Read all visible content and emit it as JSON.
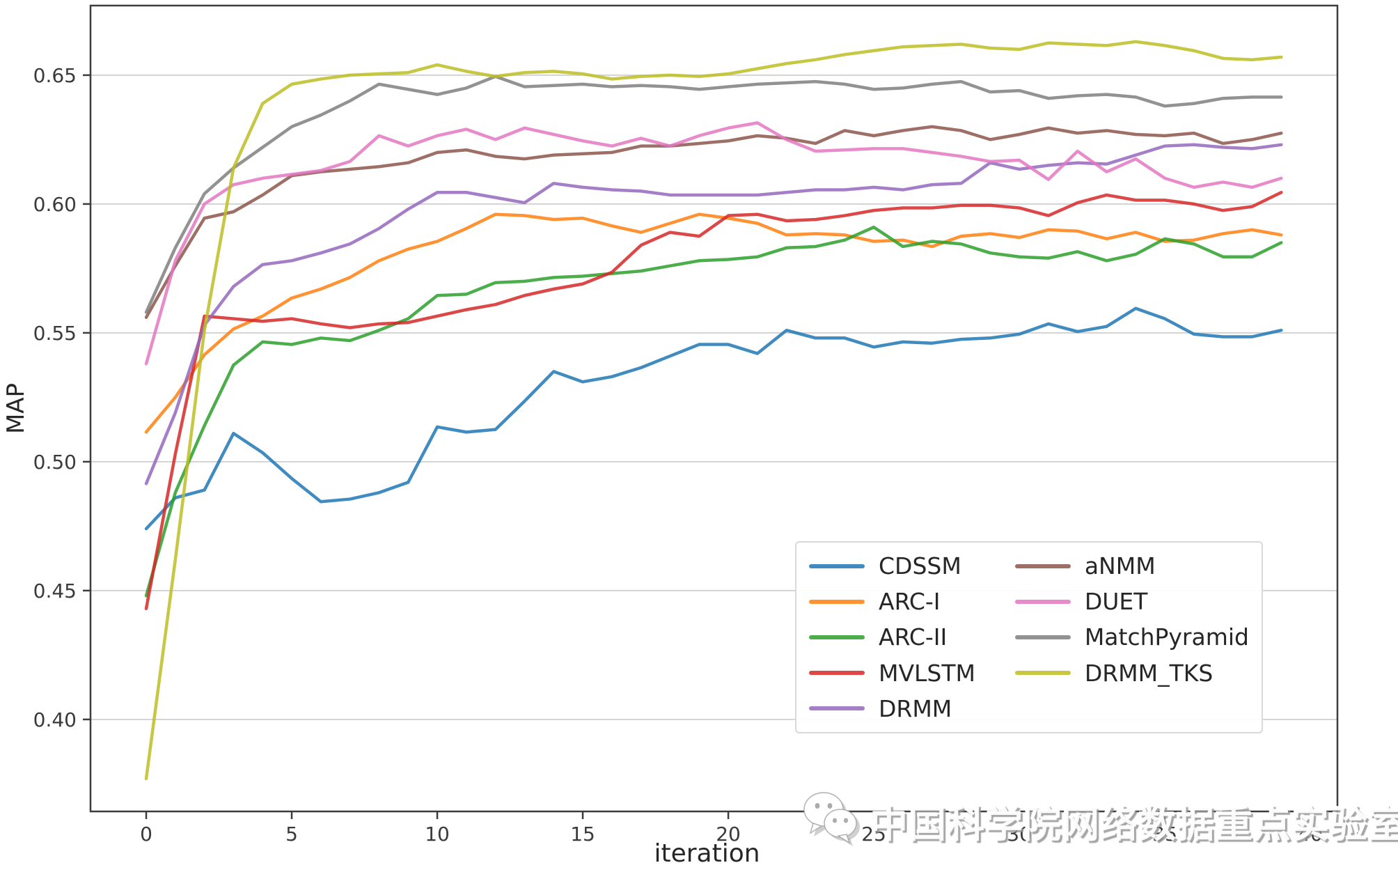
{
  "axes": {
    "xlabel": "iteration",
    "ylabel": "MAP"
  },
  "watermark": {
    "icon": "wechat-icon",
    "text": "中国科学院网络数据重点实验室"
  },
  "colors": {
    "grid": "#cccccc",
    "spine": "#3c3c3c",
    "tick_label": "#3a3a3a",
    "axis_label": "#262626"
  },
  "chart_data": {
    "type": "line",
    "title": "",
    "xlabel": "iteration",
    "ylabel": "MAP",
    "grid": "horizontal",
    "legend_position": "lower right",
    "xlim": [
      -1.914,
      40.93
    ],
    "ylim": [
      0.3643,
      0.677
    ],
    "x_ticks": [
      {
        "value": 0,
        "label": "0"
      },
      {
        "value": 5,
        "label": "5"
      },
      {
        "value": 10,
        "label": "10"
      },
      {
        "value": 15,
        "label": "15"
      },
      {
        "value": 20,
        "label": "20"
      },
      {
        "value": 25,
        "label": "25"
      },
      {
        "value": 30,
        "label": "30"
      },
      {
        "value": 35,
        "label": "35"
      },
      {
        "value": 40,
        "label": "40"
      }
    ],
    "y_ticks": [
      {
        "value": 0.4,
        "label": "0.40"
      },
      {
        "value": 0.45,
        "label": "0.45"
      },
      {
        "value": 0.5,
        "label": "0.50"
      },
      {
        "value": 0.55,
        "label": "0.55"
      },
      {
        "value": 0.6,
        "label": "0.60"
      },
      {
        "value": 0.65,
        "label": "0.65"
      }
    ],
    "x": [
      0,
      1,
      2,
      3,
      4,
      5,
      6,
      7,
      8,
      9,
      10,
      11,
      12,
      13,
      14,
      15,
      16,
      17,
      18,
      19,
      20,
      21,
      22,
      23,
      24,
      25,
      26,
      27,
      28,
      29,
      30,
      31,
      32,
      33,
      34,
      35,
      36,
      37,
      38,
      39
    ],
    "series": [
      {
        "name": "CDSSM",
        "color": "#1f77b4",
        "values": [
          0.474,
          0.486,
          0.489,
          0.511,
          0.5035,
          0.4935,
          0.4845,
          0.4855,
          0.488,
          0.492,
          0.5135,
          0.5115,
          0.5125,
          0.5235,
          0.535,
          0.531,
          0.533,
          0.5365,
          0.541,
          0.5455,
          0.5455,
          0.542,
          0.551,
          0.548,
          0.548,
          0.5445,
          0.5465,
          0.546,
          0.5475,
          0.548,
          0.5495,
          0.5535,
          0.5505,
          0.5525,
          0.5595,
          0.5555,
          0.5495,
          0.5485,
          0.5485,
          0.551
        ]
      },
      {
        "name": "ARC-I",
        "color": "#ff7f0e",
        "values": [
          0.5115,
          0.525,
          0.5415,
          0.5515,
          0.5565,
          0.5635,
          0.567,
          0.5715,
          0.578,
          0.5825,
          0.5855,
          0.5905,
          0.596,
          0.5955,
          0.594,
          0.5945,
          0.5915,
          0.589,
          0.5925,
          0.596,
          0.5945,
          0.5925,
          0.588,
          0.5885,
          0.588,
          0.5855,
          0.586,
          0.5835,
          0.5875,
          0.5885,
          0.587,
          0.59,
          0.5895,
          0.5865,
          0.589,
          0.5855,
          0.586,
          0.5885,
          0.59,
          0.588
        ]
      },
      {
        "name": "ARC-II",
        "color": "#2ca02c",
        "values": [
          0.448,
          0.488,
          0.514,
          0.5375,
          0.5465,
          0.5455,
          0.548,
          0.547,
          0.551,
          0.5555,
          0.5645,
          0.565,
          0.5695,
          0.57,
          0.5715,
          0.572,
          0.573,
          0.574,
          0.576,
          0.578,
          0.5785,
          0.5795,
          0.583,
          0.5835,
          0.586,
          0.591,
          0.5835,
          0.5855,
          0.5845,
          0.581,
          0.5795,
          0.579,
          0.5815,
          0.578,
          0.5805,
          0.5865,
          0.5845,
          0.5795,
          0.5795,
          0.585
        ]
      },
      {
        "name": "MVLSTM",
        "color": "#d62728",
        "values": [
          0.443,
          0.503,
          0.5565,
          0.5555,
          0.5545,
          0.5555,
          0.5535,
          0.552,
          0.5535,
          0.554,
          0.5565,
          0.559,
          0.561,
          0.5645,
          0.567,
          0.569,
          0.5735,
          0.584,
          0.589,
          0.5875,
          0.5955,
          0.596,
          0.5935,
          0.594,
          0.5955,
          0.5975,
          0.5985,
          0.5985,
          0.5995,
          0.5995,
          0.5985,
          0.5955,
          0.6005,
          0.6035,
          0.6015,
          0.6015,
          0.6,
          0.5975,
          0.599,
          0.6045
        ]
      },
      {
        "name": "DRMM",
        "color": "#9467bd",
        "values": [
          0.4915,
          0.519,
          0.553,
          0.568,
          0.5765,
          0.578,
          0.581,
          0.5845,
          0.5905,
          0.598,
          0.6045,
          0.6045,
          0.6025,
          0.6005,
          0.608,
          0.6065,
          0.6055,
          0.605,
          0.6035,
          0.6035,
          0.6035,
          0.6035,
          0.6045,
          0.6055,
          0.6055,
          0.6065,
          0.6055,
          0.6075,
          0.608,
          0.616,
          0.6135,
          0.615,
          0.616,
          0.6155,
          0.619,
          0.6225,
          0.623,
          0.622,
          0.6215,
          0.623
        ]
      },
      {
        "name": "aNMM",
        "color": "#8c564b",
        "values": [
          0.556,
          0.576,
          0.5945,
          0.597,
          0.6035,
          0.611,
          0.6125,
          0.6135,
          0.6145,
          0.616,
          0.62,
          0.621,
          0.6185,
          0.6175,
          0.619,
          0.6195,
          0.62,
          0.6225,
          0.6225,
          0.6235,
          0.6245,
          0.6265,
          0.6255,
          0.6235,
          0.6285,
          0.6265,
          0.6285,
          0.63,
          0.6285,
          0.625,
          0.627,
          0.6295,
          0.6275,
          0.6285,
          0.627,
          0.6265,
          0.6275,
          0.6235,
          0.625,
          0.6275
        ]
      },
      {
        "name": "DUET",
        "color": "#e377c2",
        "values": [
          0.538,
          0.578,
          0.6,
          0.6075,
          0.61,
          0.6115,
          0.613,
          0.6165,
          0.6265,
          0.6225,
          0.6265,
          0.629,
          0.625,
          0.6295,
          0.627,
          0.6245,
          0.6225,
          0.6255,
          0.6225,
          0.6265,
          0.6295,
          0.6315,
          0.625,
          0.6205,
          0.621,
          0.6215,
          0.6215,
          0.62,
          0.6185,
          0.6165,
          0.617,
          0.6095,
          0.6205,
          0.6125,
          0.6175,
          0.61,
          0.6065,
          0.6085,
          0.6065,
          0.61
        ]
      },
      {
        "name": "MatchPyramid",
        "color": "#7f7f7f",
        "values": [
          0.558,
          0.583,
          0.604,
          0.614,
          0.622,
          0.63,
          0.6345,
          0.64,
          0.6465,
          0.6445,
          0.6425,
          0.645,
          0.6495,
          0.6455,
          0.646,
          0.6465,
          0.6455,
          0.646,
          0.6455,
          0.6445,
          0.6455,
          0.6465,
          0.647,
          0.6475,
          0.6465,
          0.6445,
          0.645,
          0.6465,
          0.6475,
          0.6435,
          0.644,
          0.641,
          0.642,
          0.6425,
          0.6415,
          0.638,
          0.639,
          0.641,
          0.6415,
          0.6415
        ]
      },
      {
        "name": "DRMM_TKS",
        "color": "#bcbd22",
        "values": [
          0.377,
          0.462,
          0.551,
          0.614,
          0.639,
          0.6465,
          0.6485,
          0.65,
          0.6505,
          0.651,
          0.654,
          0.6515,
          0.6495,
          0.651,
          0.6515,
          0.6505,
          0.6485,
          0.6495,
          0.65,
          0.6495,
          0.6505,
          0.6525,
          0.6545,
          0.656,
          0.658,
          0.6595,
          0.661,
          0.6615,
          0.662,
          0.6605,
          0.66,
          0.6625,
          0.662,
          0.6615,
          0.663,
          0.6615,
          0.6595,
          0.6565,
          0.656,
          0.657
        ]
      }
    ]
  }
}
